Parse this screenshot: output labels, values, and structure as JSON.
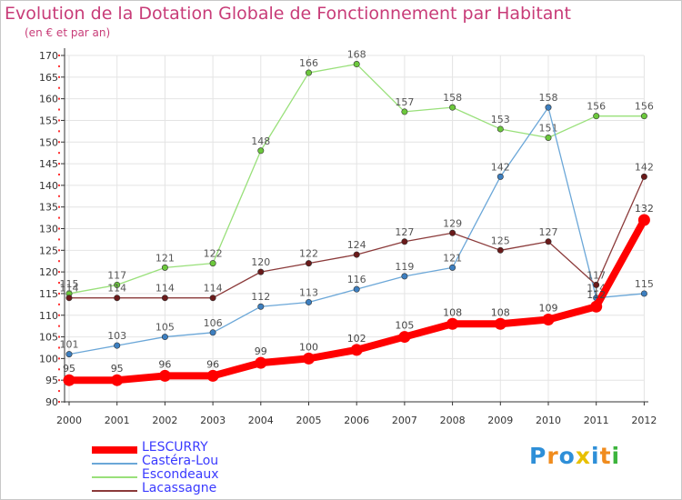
{
  "title": "Evolution de la Dotation Globale de Fonctionnement par Habitant",
  "subtitle": "(en € et par an)",
  "logo": {
    "text": "Proxiti",
    "colors": [
      "#2e8fd8",
      "#f08c1e",
      "#2e8fd8",
      "#e8c000",
      "#2e8fd8",
      "#f08c1e",
      "#3cb43c"
    ]
  },
  "chart_data": {
    "type": "line",
    "x": [
      "2000",
      "2001",
      "2002",
      "2003",
      "2004",
      "2005",
      "2006",
      "2007",
      "2008",
      "2009",
      "2010",
      "2011",
      "2012"
    ],
    "ylim": [
      90,
      170
    ],
    "yticks": [
      90,
      95,
      100,
      105,
      110,
      115,
      120,
      125,
      130,
      135,
      140,
      145,
      150,
      155,
      160,
      165,
      170
    ],
    "grid": true,
    "legend_position": "bottom-left",
    "series": [
      {
        "name": "LESCURRY",
        "color": "#ff0000",
        "marker": "#ff0000",
        "label_color": "#444444",
        "values": [
          95,
          95,
          96,
          96,
          99,
          100,
          102,
          105,
          108,
          108,
          109,
          112,
          132
        ]
      },
      {
        "name": "Castéra-Lou",
        "color": "#6ba7d8",
        "marker": "#3d7fc0",
        "label_color": "#555555",
        "values": [
          101,
          103,
          105,
          106,
          112,
          113,
          116,
          119,
          121,
          142,
          158,
          114,
          115
        ]
      },
      {
        "name": "Escondeaux",
        "color": "#99e07a",
        "marker": "#6cc83c",
        "label_color": "#555555",
        "values": [
          115,
          117,
          121,
          122,
          148,
          166,
          168,
          157,
          158,
          153,
          151,
          156,
          156
        ]
      },
      {
        "name": "Lacassagne",
        "color": "#8b3a3a",
        "marker": "#6a1a1a",
        "label_color": "#555555",
        "values": [
          114,
          114,
          114,
          114,
          120,
          122,
          124,
          127,
          129,
          125,
          127,
          117,
          142
        ]
      }
    ]
  }
}
